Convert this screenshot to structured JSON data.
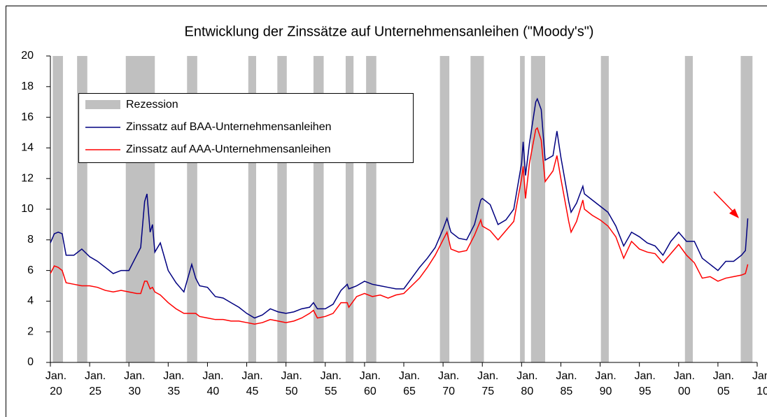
{
  "chart_data": {
    "type": "line",
    "title": "Entwicklung der Zinssätze auf Unternehmensanleihen (\"Moody's\")",
    "legend": "upper left",
    "recession_label": "Rezession",
    "recession_color": "#c0c0c0",
    "recessions": [
      [
        1920.3,
        1921.6
      ],
      [
        1923.4,
        1924.7
      ],
      [
        1929.6,
        1933.3
      ],
      [
        1937.4,
        1938.7
      ],
      [
        1945.2,
        1946.2
      ],
      [
        1948.9,
        1950.1
      ],
      [
        1953.5,
        1954.8
      ],
      [
        1957.6,
        1958.6
      ],
      [
        1960.2,
        1961.5
      ],
      [
        1969.6,
        1970.8
      ],
      [
        1973.5,
        1975.2
      ],
      [
        1979.8,
        1980.4
      ],
      [
        1981.2,
        1983.0
      ],
      [
        1990.1,
        1991.1
      ],
      [
        2000.8,
        2001.8
      ],
      [
        2007.9,
        2009.4
      ]
    ],
    "x": [
      1920,
      1920.5,
      1921,
      1921.5,
      1922,
      1923,
      1924,
      1925,
      1926,
      1927,
      1928,
      1929,
      1930,
      1931,
      1931.5,
      1932,
      1932.3,
      1932.7,
      1933,
      1933.3,
      1934,
      1935,
      1936,
      1937,
      1938,
      1938.5,
      1939,
      1940,
      1941,
      1942,
      1943,
      1944,
      1945,
      1946,
      1947,
      1948,
      1949,
      1950,
      1951,
      1952,
      1953,
      1953.5,
      1954,
      1955,
      1956,
      1957,
      1957.8,
      1958,
      1959,
      1960,
      1961,
      1962,
      1963,
      1964,
      1965,
      1966,
      1967,
      1968,
      1969,
      1970,
      1970.5,
      1971,
      1972,
      1973,
      1974,
      1974.8,
      1975,
      1976,
      1977,
      1978,
      1979,
      1980,
      1980.2,
      1980.5,
      1981,
      1981.8,
      1982,
      1982.5,
      1983,
      1984,
      1984.5,
      1985,
      1986,
      1986.3,
      1987,
      1987.8,
      1988,
      1989,
      1990,
      1991,
      1992,
      1993,
      1994,
      1995,
      1996,
      1997,
      1998,
      1999,
      2000,
      2001,
      2002,
      2003,
      2004,
      2005,
      2006,
      2007,
      2008,
      2008.5,
      2008.8
    ],
    "series": [
      {
        "name": "Zinssatz auf BAA-Unternehmensanleihen",
        "color": "#000080",
        "values": [
          7.8,
          8.4,
          8.5,
          8.4,
          7.0,
          7.0,
          7.4,
          6.9,
          6.6,
          6.2,
          5.8,
          6.0,
          6.0,
          7.0,
          7.5,
          10.5,
          11.0,
          8.5,
          9.0,
          7.2,
          7.8,
          6.0,
          5.2,
          4.6,
          6.4,
          5.5,
          5.0,
          4.9,
          4.3,
          4.2,
          3.9,
          3.6,
          3.2,
          2.9,
          3.1,
          3.5,
          3.3,
          3.2,
          3.3,
          3.5,
          3.6,
          3.9,
          3.5,
          3.5,
          3.8,
          4.7,
          5.1,
          4.8,
          5.0,
          5.3,
          5.1,
          5.0,
          4.9,
          4.8,
          4.8,
          5.5,
          6.2,
          6.8,
          7.5,
          8.7,
          9.4,
          8.5,
          8.1,
          8.0,
          9.0,
          10.6,
          10.7,
          10.3,
          9.0,
          9.3,
          10.0,
          13.0,
          14.4,
          12.2,
          14.3,
          17.0,
          17.2,
          16.5,
          13.2,
          13.5,
          15.1,
          13.4,
          10.5,
          9.8,
          10.4,
          11.5,
          11.0,
          10.6,
          10.2,
          9.8,
          8.9,
          7.6,
          8.5,
          8.2,
          7.8,
          7.6,
          7.0,
          7.9,
          8.5,
          7.9,
          7.9,
          6.8,
          6.4,
          6.0,
          6.6,
          6.6,
          7.0,
          7.3,
          9.4
        ]
      },
      {
        "name": "Zinssatz auf AAA-Unternehmensanleihen",
        "color": "#ff0000",
        "values": [
          5.8,
          6.3,
          6.2,
          6.0,
          5.2,
          5.1,
          5.0,
          5.0,
          4.9,
          4.7,
          4.6,
          4.7,
          4.6,
          4.5,
          4.5,
          5.3,
          5.3,
          4.8,
          4.9,
          4.6,
          4.4,
          3.9,
          3.5,
          3.2,
          3.2,
          3.2,
          3.0,
          2.9,
          2.8,
          2.8,
          2.7,
          2.7,
          2.6,
          2.5,
          2.6,
          2.8,
          2.7,
          2.6,
          2.7,
          2.9,
          3.2,
          3.4,
          2.9,
          3.0,
          3.2,
          3.9,
          3.9,
          3.6,
          4.3,
          4.5,
          4.3,
          4.4,
          4.2,
          4.4,
          4.5,
          5.0,
          5.5,
          6.2,
          7.0,
          8.0,
          8.5,
          7.4,
          7.2,
          7.3,
          8.3,
          9.3,
          8.9,
          8.6,
          8.0,
          8.6,
          9.2,
          12.0,
          12.8,
          10.7,
          13.0,
          15.2,
          15.3,
          14.5,
          11.8,
          12.5,
          13.5,
          12.0,
          9.2,
          8.5,
          9.2,
          10.6,
          10.0,
          9.6,
          9.3,
          8.9,
          8.2,
          6.8,
          7.9,
          7.4,
          7.2,
          7.1,
          6.5,
          7.1,
          7.7,
          7.0,
          6.5,
          5.5,
          5.6,
          5.3,
          5.5,
          5.6,
          5.7,
          5.8,
          6.4
        ]
      }
    ],
    "xlim": [
      1920,
      2010
    ],
    "xticks": [
      {
        "value": 1920,
        "label": "Jan.\n20"
      },
      {
        "value": 1925,
        "label": "Jan.\n25"
      },
      {
        "value": 1930,
        "label": "Jan.\n30"
      },
      {
        "value": 1935,
        "label": "Jan.\n35"
      },
      {
        "value": 1940,
        "label": "Jan.\n40"
      },
      {
        "value": 1945,
        "label": "Jan.\n45"
      },
      {
        "value": 1950,
        "label": "Jan.\n50"
      },
      {
        "value": 1955,
        "label": "Jan.\n55"
      },
      {
        "value": 1960,
        "label": "Jan.\n60"
      },
      {
        "value": 1965,
        "label": "Jan.\n65"
      },
      {
        "value": 1970,
        "label": "Jan.\n70"
      },
      {
        "value": 1975,
        "label": "Jan.\n75"
      },
      {
        "value": 1980,
        "label": "Jan.\n80"
      },
      {
        "value": 1985,
        "label": "Jan.\n85"
      },
      {
        "value": 1990,
        "label": "Jan.\n90"
      },
      {
        "value": 1995,
        "label": "Jan.\n95"
      },
      {
        "value": 2000,
        "label": "Jan.\n00"
      },
      {
        "value": 2005,
        "label": "Jan.\n05"
      },
      {
        "value": 2010,
        "label": "Jan.\n10"
      }
    ],
    "ylim": [
      0,
      20
    ],
    "yticks": [
      0,
      2,
      4,
      6,
      8,
      10,
      12,
      14,
      16,
      18,
      20
    ]
  }
}
